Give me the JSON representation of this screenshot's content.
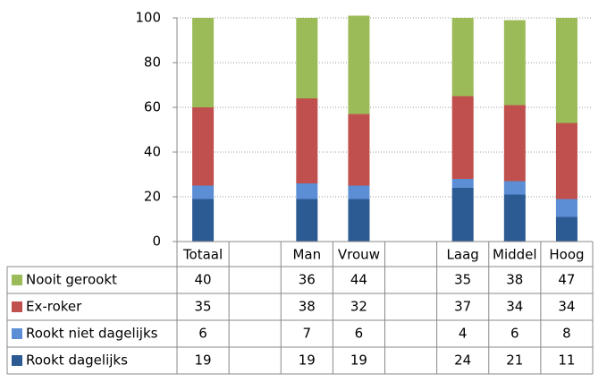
{
  "chart_data": {
    "type": "stacked_bar",
    "categories": [
      "Totaal",
      null,
      "Man",
      "Vrouw",
      null,
      "Laag",
      "Middel",
      "Hoog"
    ],
    "series": [
      {
        "name": "Nooit gerookt",
        "color": "#9bbb59",
        "values": [
          40,
          null,
          36,
          44,
          null,
          35,
          38,
          47
        ]
      },
      {
        "name": "Ex-roker",
        "color": "#c0504d",
        "values": [
          35,
          null,
          38,
          32,
          null,
          37,
          34,
          34
        ]
      },
      {
        "name": "Rookt niet dagelijks",
        "color": "#5b8ed4",
        "values": [
          6,
          null,
          7,
          6,
          null,
          4,
          6,
          8
        ]
      },
      {
        "name": "Rookt dagelijks",
        "color": "#2c5a92",
        "values": [
          19,
          null,
          19,
          19,
          null,
          24,
          21,
          11
        ]
      }
    ],
    "ylim": [
      0,
      100
    ],
    "yticks": [
      0,
      20,
      40,
      60,
      80,
      100
    ],
    "grid": true
  }
}
